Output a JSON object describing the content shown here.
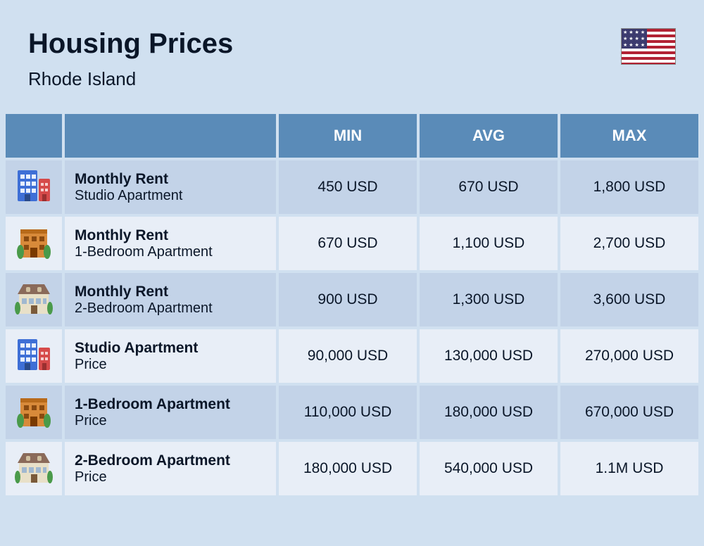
{
  "header": {
    "title": "Housing Prices",
    "subtitle": "Rhode Island",
    "flag": "us"
  },
  "table": {
    "columns": {
      "min": "MIN",
      "avg": "AVG",
      "max": "MAX"
    },
    "col_widths": {
      "icon": 80,
      "label": 300
    },
    "header_bg": "#5a8bb8",
    "header_fg": "#ffffff",
    "row_bg": "#c3d3e8",
    "row_alt_bg": "#e8eef7",
    "text_color": "#0a1628",
    "font_size_label": 21,
    "font_size_value": 21,
    "rows": [
      {
        "icon": "apartment-block",
        "title": "Monthly Rent",
        "subtitle": "Studio Apartment",
        "min": "450 USD",
        "avg": "670 USD",
        "max": "1,800 USD",
        "alt": false
      },
      {
        "icon": "brick-building",
        "title": "Monthly Rent",
        "subtitle": "1-Bedroom Apartment",
        "min": "670 USD",
        "avg": "1,100 USD",
        "max": "2,700 USD",
        "alt": true
      },
      {
        "icon": "mansard-house",
        "title": "Monthly Rent",
        "subtitle": "2-Bedroom Apartment",
        "min": "900 USD",
        "avg": "1,300 USD",
        "max": "3,600 USD",
        "alt": false
      },
      {
        "icon": "apartment-block",
        "title": "Studio Apartment",
        "subtitle": "Price",
        "min": "90,000 USD",
        "avg": "130,000 USD",
        "max": "270,000 USD",
        "alt": true
      },
      {
        "icon": "brick-building",
        "title": "1-Bedroom Apartment",
        "subtitle": "Price",
        "min": "110,000 USD",
        "avg": "180,000 USD",
        "max": "670,000 USD",
        "alt": false
      },
      {
        "icon": "mansard-house",
        "title": "2-Bedroom Apartment",
        "subtitle": "Price",
        "min": "180,000 USD",
        "avg": "540,000 USD",
        "max": "1.1M USD",
        "alt": true
      }
    ]
  },
  "colors": {
    "page_bg": "#d0e0f0"
  }
}
